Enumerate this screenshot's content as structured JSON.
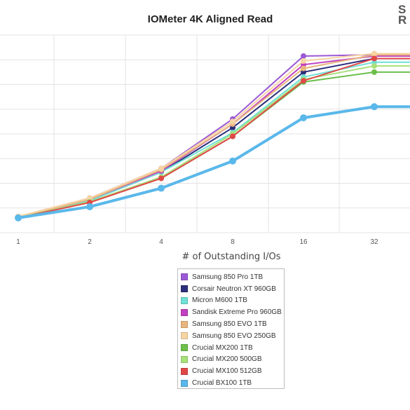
{
  "chart_data": {
    "type": "line",
    "title": "IOMeter 4K Aligned Read",
    "xlabel": "# of Outstanding I/Os",
    "ylabel": "",
    "categories": [
      "1",
      "2",
      "4",
      "8",
      "16",
      "32"
    ],
    "ylim": [
      0,
      8
    ],
    "grid": true,
    "legend_position": "bottom-center",
    "series": [
      {
        "name": "Samsung 850 Pro 1TB",
        "color": "#9b59d6",
        "values": [
          0.65,
          1.4,
          2.6,
          4.6,
          7.15,
          7.2
        ]
      },
      {
        "name": "Corsair Neutron XT 960GB",
        "color": "#2c2f7a",
        "values": [
          0.62,
          1.3,
          2.45,
          4.25,
          6.5,
          7.05
        ]
      },
      {
        "name": "Micron M600 1TB",
        "color": "#6fe0d6",
        "values": [
          0.62,
          1.3,
          2.45,
          4.05,
          6.3,
          6.9
        ]
      },
      {
        "name": "Sandisk Extreme Pro 960GB",
        "color": "#c040c0",
        "values": [
          0.64,
          1.35,
          2.5,
          4.4,
          6.8,
          7.15
        ]
      },
      {
        "name": "Samsung 850 EVO 1TB",
        "color": "#e8b57e",
        "values": [
          0.63,
          1.35,
          2.55,
          4.4,
          6.65,
          7.2
        ]
      },
      {
        "name": "Samsung 850 EVO 250GB",
        "color": "#f7d4a4",
        "values": [
          0.66,
          1.4,
          2.6,
          4.5,
          6.95,
          7.25
        ]
      },
      {
        "name": "Crucial MX200 1TB",
        "color": "#6bbf4a",
        "values": [
          0.6,
          1.25,
          2.2,
          3.9,
          6.1,
          6.5
        ]
      },
      {
        "name": "Crucial MX200 500GB",
        "color": "#a8e07a",
        "values": [
          0.61,
          1.25,
          2.25,
          4.0,
          6.2,
          6.75
        ]
      },
      {
        "name": "Crucial MX100 512GB",
        "color": "#e04848",
        "values": [
          0.6,
          1.22,
          2.2,
          3.9,
          6.15,
          7.05
        ]
      },
      {
        "name": "Crucial BX100 1TB",
        "color": "#5ab8ea",
        "values": [
          0.6,
          1.05,
          1.8,
          2.9,
          4.65,
          5.1
        ]
      }
    ]
  }
}
